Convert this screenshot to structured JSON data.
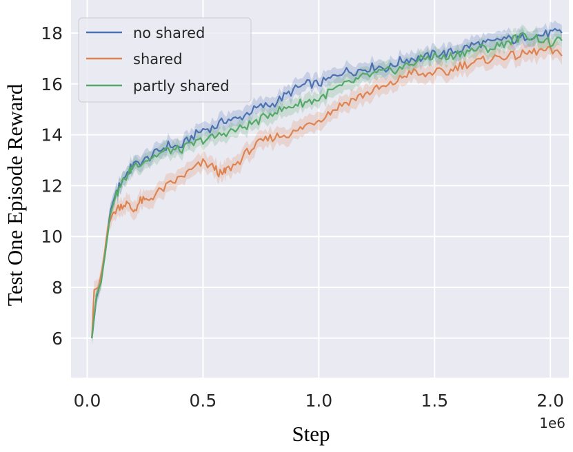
{
  "chart_data": {
    "type": "line",
    "xlabel": "Step",
    "ylabel": "Test One Episode Reward",
    "x_offset_label": "1e6",
    "xlim": [
      -0.07,
      2.08
    ],
    "ylim": [
      4.45,
      19.3
    ],
    "xticks": [
      0.0,
      0.5,
      1.0,
      1.5,
      2.0
    ],
    "xtick_labels": [
      "0.0",
      "0.5",
      "1.0",
      "1.5",
      "2.0"
    ],
    "yticks": [
      6,
      8,
      10,
      12,
      14,
      16,
      18
    ],
    "ytick_labels": [
      "6",
      "8",
      "10",
      "12",
      "14",
      "16",
      "18"
    ],
    "grid": true,
    "background": "#eaeaf2",
    "legend_position": "top-left",
    "series": [
      {
        "name": "no shared",
        "color": "#4c72b0",
        "points": [
          [
            0.02,
            6.0
          ],
          [
            0.04,
            7.6
          ],
          [
            0.06,
            8.3
          ],
          [
            0.08,
            9.6
          ],
          [
            0.1,
            11.0
          ],
          [
            0.12,
            11.6
          ],
          [
            0.15,
            12.2
          ],
          [
            0.18,
            12.6
          ],
          [
            0.2,
            12.8
          ],
          [
            0.25,
            13.0
          ],
          [
            0.3,
            13.3
          ],
          [
            0.35,
            13.6
          ],
          [
            0.4,
            13.5
          ],
          [
            0.45,
            13.9
          ],
          [
            0.5,
            14.2
          ],
          [
            0.55,
            14.3
          ],
          [
            0.6,
            14.6
          ],
          [
            0.65,
            14.6
          ],
          [
            0.7,
            14.9
          ],
          [
            0.75,
            15.1
          ],
          [
            0.8,
            15.2
          ],
          [
            0.85,
            15.5
          ],
          [
            0.9,
            15.8
          ],
          [
            0.95,
            16.0
          ],
          [
            1.0,
            16.0
          ],
          [
            1.05,
            16.2
          ],
          [
            1.1,
            16.5
          ],
          [
            1.15,
            16.5
          ],
          [
            1.2,
            16.6
          ],
          [
            1.25,
            16.7
          ],
          [
            1.3,
            16.6
          ],
          [
            1.35,
            16.9
          ],
          [
            1.4,
            17.0
          ],
          [
            1.45,
            17.0
          ],
          [
            1.5,
            17.2
          ],
          [
            1.55,
            17.2
          ],
          [
            1.6,
            17.3
          ],
          [
            1.65,
            17.5
          ],
          [
            1.7,
            17.6
          ],
          [
            1.75,
            17.6
          ],
          [
            1.8,
            17.8
          ],
          [
            1.85,
            17.7
          ],
          [
            1.9,
            17.9
          ],
          [
            1.95,
            17.9
          ],
          [
            2.0,
            18.0
          ],
          [
            2.05,
            18.0
          ]
        ],
        "band": 0.35
      },
      {
        "name": "shared",
        "color": "#dd8452",
        "points": [
          [
            0.02,
            6.0
          ],
          [
            0.03,
            7.9
          ],
          [
            0.05,
            8.0
          ],
          [
            0.07,
            9.0
          ],
          [
            0.09,
            10.4
          ],
          [
            0.11,
            10.9
          ],
          [
            0.14,
            11.2
          ],
          [
            0.17,
            11.3
          ],
          [
            0.2,
            11.0
          ],
          [
            0.23,
            11.4
          ],
          [
            0.26,
            11.4
          ],
          [
            0.3,
            11.7
          ],
          [
            0.35,
            12.0
          ],
          [
            0.4,
            12.3
          ],
          [
            0.45,
            12.6
          ],
          [
            0.5,
            12.9
          ],
          [
            0.55,
            12.7
          ],
          [
            0.58,
            12.4
          ],
          [
            0.6,
            12.6
          ],
          [
            0.65,
            12.9
          ],
          [
            0.7,
            13.4
          ],
          [
            0.75,
            13.7
          ],
          [
            0.8,
            13.9
          ],
          [
            0.85,
            14.0
          ],
          [
            0.9,
            14.1
          ],
          [
            0.95,
            14.4
          ],
          [
            1.0,
            14.6
          ],
          [
            1.05,
            14.9
          ],
          [
            1.1,
            15.2
          ],
          [
            1.15,
            15.4
          ],
          [
            1.2,
            15.6
          ],
          [
            1.25,
            15.8
          ],
          [
            1.3,
            15.9
          ],
          [
            1.35,
            16.2
          ],
          [
            1.4,
            16.5
          ],
          [
            1.45,
            16.3
          ],
          [
            1.5,
            16.5
          ],
          [
            1.55,
            16.4
          ],
          [
            1.6,
            16.7
          ],
          [
            1.65,
            16.8
          ],
          [
            1.7,
            16.9
          ],
          [
            1.75,
            17.0
          ],
          [
            1.8,
            17.1
          ],
          [
            1.85,
            17.1
          ],
          [
            1.9,
            17.2
          ],
          [
            1.95,
            17.3
          ],
          [
            2.0,
            17.3
          ],
          [
            2.05,
            17.1
          ]
        ],
        "band": 0.4
      },
      {
        "name": "partly shared",
        "color": "#55a868",
        "points": [
          [
            0.02,
            6.0
          ],
          [
            0.04,
            7.7
          ],
          [
            0.06,
            8.2
          ],
          [
            0.08,
            9.5
          ],
          [
            0.1,
            10.9
          ],
          [
            0.12,
            11.5
          ],
          [
            0.15,
            12.1
          ],
          [
            0.18,
            12.5
          ],
          [
            0.2,
            12.8
          ],
          [
            0.25,
            13.0
          ],
          [
            0.3,
            13.2
          ],
          [
            0.35,
            13.4
          ],
          [
            0.4,
            13.4
          ],
          [
            0.45,
            13.6
          ],
          [
            0.5,
            13.8
          ],
          [
            0.55,
            13.9
          ],
          [
            0.6,
            14.1
          ],
          [
            0.65,
            14.2
          ],
          [
            0.7,
            14.4
          ],
          [
            0.75,
            14.6
          ],
          [
            0.8,
            14.9
          ],
          [
            0.85,
            15.0
          ],
          [
            0.9,
            15.2
          ],
          [
            0.95,
            15.3
          ],
          [
            1.0,
            15.4
          ],
          [
            1.05,
            15.7
          ],
          [
            1.1,
            15.9
          ],
          [
            1.15,
            16.1
          ],
          [
            1.2,
            16.3
          ],
          [
            1.25,
            16.4
          ],
          [
            1.3,
            16.5
          ],
          [
            1.35,
            16.6
          ],
          [
            1.4,
            16.8
          ],
          [
            1.45,
            17.0
          ],
          [
            1.5,
            17.1
          ],
          [
            1.55,
            17.0
          ],
          [
            1.6,
            17.2
          ],
          [
            1.65,
            17.3
          ],
          [
            1.7,
            17.4
          ],
          [
            1.75,
            17.4
          ],
          [
            1.8,
            17.6
          ],
          [
            1.85,
            17.8
          ],
          [
            1.9,
            17.9
          ],
          [
            1.95,
            17.8
          ],
          [
            2.0,
            17.6
          ],
          [
            2.05,
            17.7
          ]
        ],
        "band": 0.35
      }
    ]
  }
}
